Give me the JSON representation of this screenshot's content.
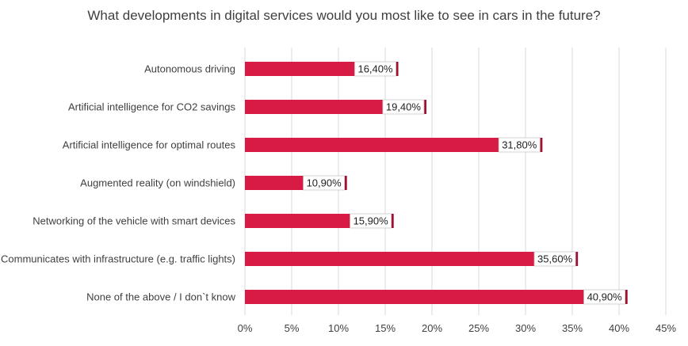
{
  "chart_data": {
    "type": "bar",
    "orientation": "horizontal",
    "title": "What developments in digital services would you most like to see in cars in the future?",
    "categories": [
      "Autonomous driving",
      "Artificial intelligence for CO2 savings",
      "Artificial intelligence for optimal routes",
      "Augmented reality (on windshield)",
      "Networking of the vehicle with smart devices",
      "Communicates with infrastructure (e.g. traffic lights)",
      "None of the above / I don`t know"
    ],
    "values": [
      16.4,
      19.4,
      31.8,
      10.9,
      15.9,
      35.6,
      40.9
    ],
    "data_labels": [
      "16,40%",
      "19,40%",
      "31,80%",
      "10,90%",
      "15,90%",
      "35,60%",
      "40,90%"
    ],
    "xlim": [
      0,
      45
    ],
    "x_ticks": [
      0,
      5,
      10,
      15,
      20,
      25,
      30,
      35,
      40,
      45
    ],
    "x_tick_labels": [
      "0%",
      "5%",
      "10%",
      "15%",
      "20%",
      "25%",
      "30%",
      "35%",
      "40%",
      "45%"
    ],
    "grid": "vertical",
    "legend": "none",
    "colors": {
      "bar": "#d81b45",
      "bar_end": "#a0102f",
      "grid": "#d9d9d9",
      "text": "#3f3f3f"
    }
  }
}
